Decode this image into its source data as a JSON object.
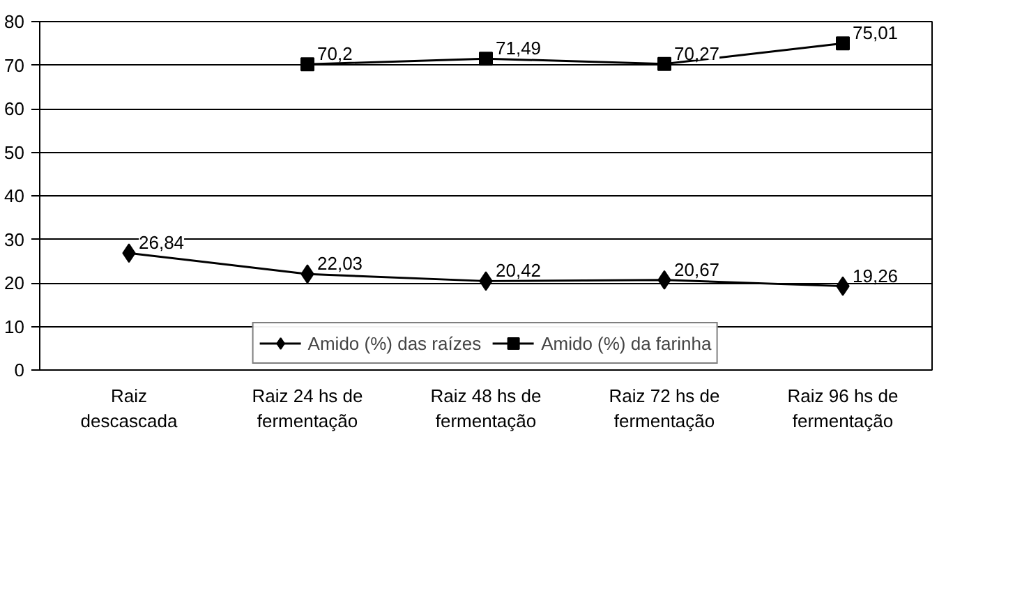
{
  "chart_data": {
    "type": "line",
    "categories": [
      "Raiz descascada",
      "Raiz 24 hs de fermentação",
      "Raiz 48 hs de fermentação",
      "Raiz 72 hs de fermentação",
      "Raiz 96 hs de fermentação"
    ],
    "series": [
      {
        "name": "Amido (%) das raízes",
        "color": "#000000",
        "marker": "diamond",
        "values": [
          26.84,
          22.03,
          20.42,
          20.67,
          19.26
        ],
        "value_labels": [
          "26,84",
          "22,03",
          "20,42",
          "20,67",
          "19,26"
        ]
      },
      {
        "name": "Amido (%) da farinha",
        "color": "#000000",
        "marker": "square",
        "values": [
          null,
          70.2,
          71.49,
          70.27,
          75.01
        ],
        "value_labels": [
          null,
          "70,2",
          "71,49",
          "70,27",
          "75,01"
        ]
      }
    ],
    "ylim": [
      0,
      80
    ],
    "yticks": [
      0,
      10,
      20,
      30,
      40,
      50,
      60,
      70,
      80
    ],
    "grid": "y",
    "legend": "bottom",
    "line_style": "solid"
  }
}
